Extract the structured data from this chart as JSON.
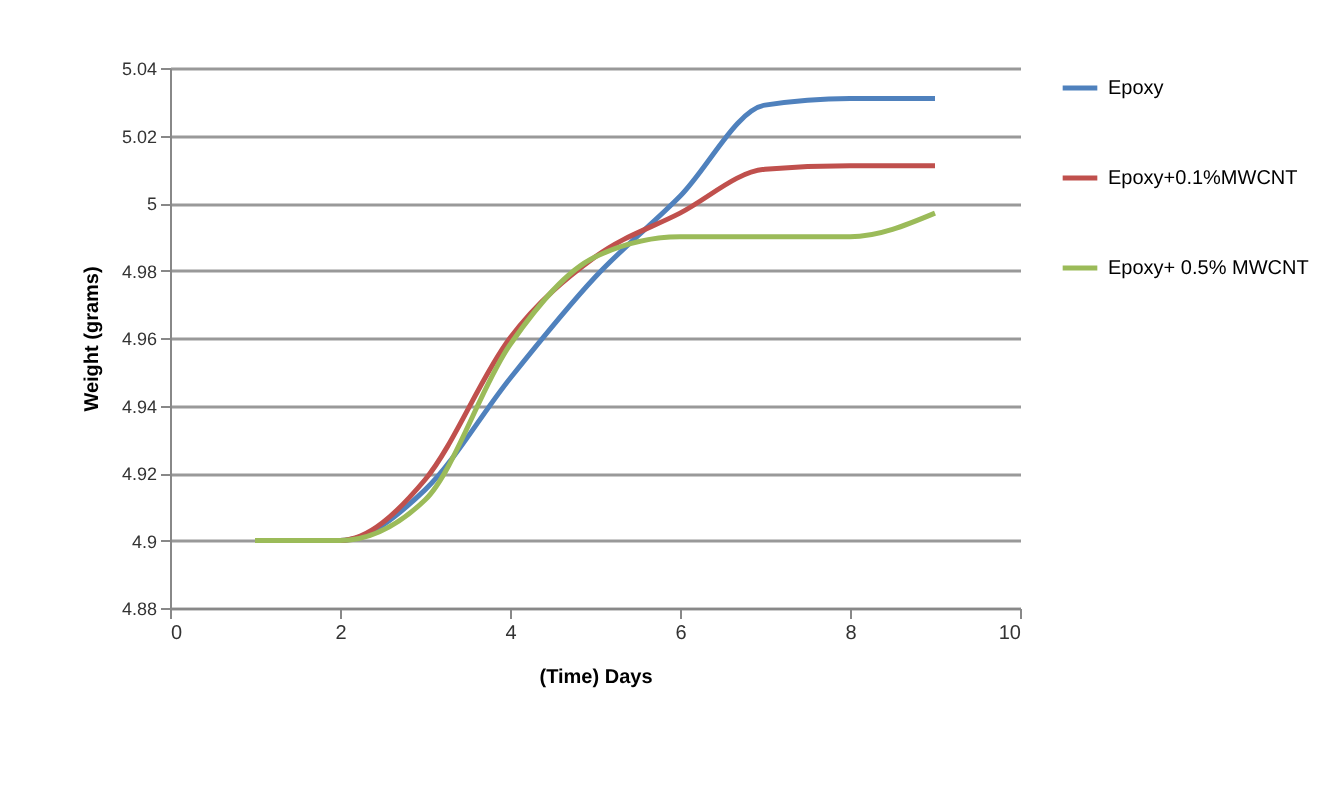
{
  "chart_data": {
    "type": "line",
    "xlabel": "(Time) Days",
    "ylabel": "Weight (grams)",
    "xlim": [
      0,
      10
    ],
    "xticks": [
      0,
      2,
      4,
      6,
      8,
      10
    ],
    "ylim": [
      4.88,
      5.04
    ],
    "yticks": [
      4.88,
      4.9,
      4.92,
      4.94,
      4.96,
      4.98,
      5,
      5.02,
      5.04
    ],
    "grid": "y",
    "legend": "right",
    "marker": "none",
    "line_style": "solid",
    "x": [
      1,
      2,
      3,
      4,
      5,
      6,
      7,
      8,
      9
    ],
    "series": [
      {
        "name": "Epoxy",
        "color": "#4f81bd",
        "values": [
          4.9,
          4.9,
          4.915,
          4.948,
          4.978,
          5.002,
          5.029,
          5.031,
          5.031
        ]
      },
      {
        "name": "Epoxy+0.1%MWCNT",
        "color": "#c0504d",
        "values": [
          4.9,
          4.9,
          4.918,
          4.96,
          4.984,
          4.997,
          5.01,
          5.011,
          5.011
        ]
      },
      {
        "name": "Epoxy+ 0.5% MWCNT",
        "color": "#9bbb59",
        "values": [
          4.9,
          4.9,
          4.912,
          4.958,
          4.984,
          4.99,
          4.99,
          4.99,
          4.997
        ]
      }
    ]
  }
}
